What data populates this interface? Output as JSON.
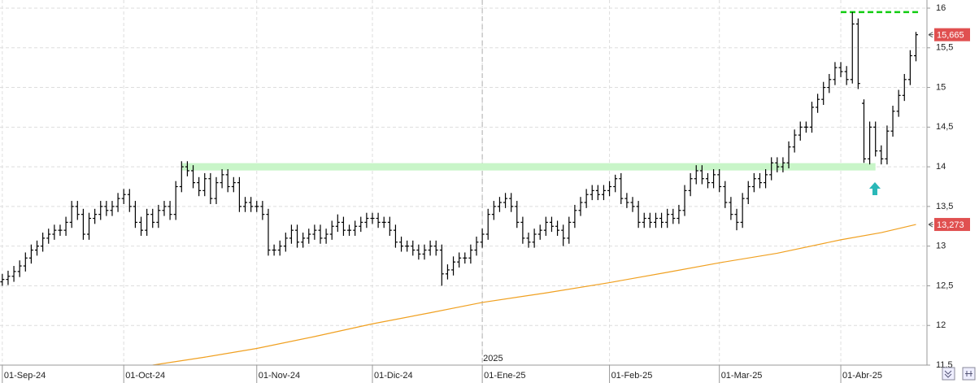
{
  "chart_data": {
    "type": "ohlc",
    "color": "#000000",
    "ylim": [
      11.5,
      16
    ],
    "yticks": [
      {
        "value": 11.5,
        "label": "11,5"
      },
      12,
      {
        "value": 12.5,
        "label": "12,5"
      },
      13,
      {
        "value": 13.5,
        "label": "13,5"
      },
      14,
      {
        "value": 14.5,
        "label": "14,5"
      },
      15,
      {
        "value": 15.5,
        "label": "15,5"
      },
      16
    ],
    "xlim": [
      -0.4,
      159.9
    ],
    "xticks": [
      {
        "value": 0,
        "label": "01-Sep-24"
      },
      {
        "value": 21,
        "label": "01-Oct-24"
      },
      {
        "value": 44,
        "label": "01-Nov-24"
      },
      {
        "value": 64,
        "label": "01-Dic-24"
      },
      {
        "value": 83,
        "label": "01-Ene-25"
      },
      {
        "value": 105,
        "label": "01-Feb-25"
      },
      {
        "value": 124,
        "label": "01-Mar-25"
      },
      {
        "value": 145,
        "label": "01-Abr-25"
      }
    ],
    "year_marker": {
      "value": 83,
      "label": "2025"
    },
    "grid": true,
    "ohlc": [
      [
        12.55,
        12.65,
        12.5,
        12.58
      ],
      [
        12.58,
        12.69,
        12.51,
        12.62
      ],
      [
        12.62,
        12.75,
        12.55,
        12.68
      ],
      [
        12.68,
        12.82,
        12.61,
        12.75
      ],
      [
        12.75,
        12.92,
        12.68,
        12.85
      ],
      [
        12.85,
        13.02,
        12.78,
        12.95
      ],
      [
        12.95,
        13.07,
        12.88,
        13.0
      ],
      [
        13.0,
        13.17,
        12.93,
        13.1
      ],
      [
        13.1,
        13.22,
        13.03,
        13.15
      ],
      [
        13.15,
        13.27,
        13.08,
        13.2
      ],
      [
        13.2,
        13.27,
        13.13,
        13.2
      ],
      [
        13.2,
        13.37,
        13.13,
        13.3
      ],
      [
        13.3,
        13.57,
        13.23,
        13.5
      ],
      [
        13.5,
        13.57,
        13.33,
        13.4
      ],
      [
        13.4,
        13.47,
        13.08,
        13.15
      ],
      [
        13.15,
        13.42,
        13.08,
        13.35
      ],
      [
        13.35,
        13.47,
        13.28,
        13.4
      ],
      [
        13.4,
        13.57,
        13.33,
        13.5
      ],
      [
        13.5,
        13.57,
        13.38,
        13.45
      ],
      [
        13.45,
        13.57,
        13.38,
        13.5
      ],
      [
        13.5,
        13.67,
        13.43,
        13.6
      ],
      [
        13.6,
        13.72,
        13.53,
        13.65
      ],
      [
        13.65,
        13.72,
        13.43,
        13.5
      ],
      [
        13.5,
        13.57,
        13.23,
        13.3
      ],
      [
        13.3,
        13.37,
        13.13,
        13.2
      ],
      [
        13.2,
        13.47,
        13.13,
        13.4
      ],
      [
        13.4,
        13.47,
        13.23,
        13.3
      ],
      [
        13.3,
        13.52,
        13.23,
        13.45
      ],
      [
        13.45,
        13.57,
        13.38,
        13.5
      ],
      [
        13.5,
        13.57,
        13.33,
        13.4
      ],
      [
        13.4,
        13.82,
        13.33,
        13.75
      ],
      [
        13.75,
        14.07,
        13.68,
        14.0
      ],
      [
        14.0,
        14.07,
        13.88,
        13.95
      ],
      [
        13.95,
        14.02,
        13.73,
        13.8
      ],
      [
        13.8,
        13.87,
        13.63,
        13.7
      ],
      [
        13.7,
        13.92,
        13.63,
        13.85
      ],
      [
        13.85,
        13.92,
        13.53,
        13.6
      ],
      [
        13.6,
        13.87,
        13.53,
        13.8
      ],
      [
        13.8,
        13.97,
        13.73,
        13.9
      ],
      [
        13.9,
        13.97,
        13.68,
        13.75
      ],
      [
        13.75,
        13.87,
        13.68,
        13.8
      ],
      [
        13.8,
        13.87,
        13.43,
        13.5
      ],
      [
        13.5,
        13.62,
        13.43,
        13.55
      ],
      [
        13.55,
        13.62,
        13.43,
        13.5
      ],
      [
        13.5,
        13.57,
        13.43,
        13.5
      ],
      [
        13.5,
        13.57,
        13.33,
        13.4
      ],
      [
        13.4,
        13.47,
        12.88,
        12.95
      ],
      [
        12.95,
        13.02,
        12.88,
        12.95
      ],
      [
        12.95,
        13.07,
        12.88,
        13.0
      ],
      [
        13.0,
        13.17,
        12.93,
        13.1
      ],
      [
        13.1,
        13.27,
        13.03,
        13.2
      ],
      [
        13.2,
        13.27,
        12.98,
        13.05
      ],
      [
        13.05,
        13.17,
        12.98,
        13.1
      ],
      [
        13.1,
        13.22,
        13.03,
        13.15
      ],
      [
        13.15,
        13.27,
        13.08,
        13.2
      ],
      [
        13.2,
        13.27,
        13.03,
        13.1
      ],
      [
        13.1,
        13.22,
        13.03,
        13.15
      ],
      [
        13.15,
        13.32,
        13.08,
        13.25
      ],
      [
        13.25,
        13.4,
        13.18,
        13.3
      ],
      [
        13.3,
        13.37,
        13.13,
        13.2
      ],
      [
        13.2,
        13.27,
        13.13,
        13.2
      ],
      [
        13.2,
        13.32,
        13.13,
        13.25
      ],
      [
        13.25,
        13.37,
        13.18,
        13.3
      ],
      [
        13.3,
        13.42,
        13.23,
        13.35
      ],
      [
        13.35,
        13.42,
        13.28,
        13.35
      ],
      [
        13.35,
        13.42,
        13.23,
        13.3
      ],
      [
        13.3,
        13.37,
        13.23,
        13.3
      ],
      [
        13.3,
        13.37,
        13.13,
        13.2
      ],
      [
        13.2,
        13.27,
        12.98,
        13.05
      ],
      [
        13.05,
        13.12,
        12.93,
        13.0
      ],
      [
        13.0,
        13.07,
        12.93,
        13.0
      ],
      [
        13.0,
        13.07,
        12.88,
        12.95
      ],
      [
        12.95,
        13.02,
        12.83,
        12.9
      ],
      [
        12.9,
        13.02,
        12.83,
        12.95
      ],
      [
        12.95,
        13.07,
        12.88,
        13.0
      ],
      [
        13.0,
        13.07,
        12.88,
        12.95
      ],
      [
        12.95,
        13.02,
        12.5,
        12.65
      ],
      [
        12.65,
        12.77,
        12.58,
        12.7
      ],
      [
        12.7,
        12.87,
        12.63,
        12.8
      ],
      [
        12.8,
        12.92,
        12.73,
        12.85
      ],
      [
        12.85,
        12.92,
        12.78,
        12.85
      ],
      [
        12.85,
        13.02,
        12.78,
        12.95
      ],
      [
        12.95,
        13.12,
        12.88,
        13.05
      ],
      [
        13.05,
        13.22,
        12.98,
        13.15
      ],
      [
        13.15,
        13.47,
        13.08,
        13.4
      ],
      [
        13.4,
        13.57,
        13.33,
        13.5
      ],
      [
        13.5,
        13.62,
        13.43,
        13.55
      ],
      [
        13.55,
        13.67,
        13.48,
        13.6
      ],
      [
        13.6,
        13.67,
        13.43,
        13.5
      ],
      [
        13.5,
        13.57,
        13.23,
        13.3
      ],
      [
        13.3,
        13.37,
        13.03,
        13.1
      ],
      [
        13.1,
        13.17,
        12.98,
        13.05
      ],
      [
        13.05,
        13.22,
        12.98,
        13.15
      ],
      [
        13.15,
        13.27,
        13.08,
        13.2
      ],
      [
        13.2,
        13.37,
        13.13,
        13.3
      ],
      [
        13.3,
        13.37,
        13.18,
        13.25
      ],
      [
        13.25,
        13.32,
        13.13,
        13.2
      ],
      [
        13.2,
        13.27,
        13.0,
        13.1
      ],
      [
        13.1,
        13.37,
        13.03,
        13.3
      ],
      [
        13.3,
        13.52,
        13.23,
        13.45
      ],
      [
        13.45,
        13.62,
        13.38,
        13.55
      ],
      [
        13.55,
        13.72,
        13.48,
        13.65
      ],
      [
        13.65,
        13.77,
        13.58,
        13.7
      ],
      [
        13.7,
        13.77,
        13.58,
        13.65
      ],
      [
        13.65,
        13.77,
        13.58,
        13.7
      ],
      [
        13.7,
        13.82,
        13.63,
        13.75
      ],
      [
        13.75,
        13.9,
        13.68,
        13.85
      ],
      [
        13.85,
        13.92,
        13.53,
        13.6
      ],
      [
        13.6,
        13.67,
        13.48,
        13.55
      ],
      [
        13.55,
        13.62,
        13.43,
        13.5
      ],
      [
        13.5,
        13.57,
        13.23,
        13.3
      ],
      [
        13.3,
        13.42,
        13.23,
        13.35
      ],
      [
        13.35,
        13.42,
        13.23,
        13.3
      ],
      [
        13.3,
        13.42,
        13.23,
        13.35
      ],
      [
        13.35,
        13.42,
        13.23,
        13.3
      ],
      [
        13.3,
        13.47,
        13.23,
        13.4
      ],
      [
        13.4,
        13.47,
        13.28,
        13.35
      ],
      [
        13.35,
        13.52,
        13.28,
        13.45
      ],
      [
        13.45,
        13.77,
        13.38,
        13.7
      ],
      [
        13.7,
        13.92,
        13.63,
        13.85
      ],
      [
        13.85,
        14.02,
        13.78,
        13.95
      ],
      [
        13.95,
        14.02,
        13.78,
        13.85
      ],
      [
        13.85,
        13.92,
        13.73,
        13.8
      ],
      [
        13.8,
        13.97,
        13.73,
        13.9
      ],
      [
        13.9,
        13.97,
        13.68,
        13.75
      ],
      [
        13.75,
        13.82,
        13.48,
        13.55
      ],
      [
        13.55,
        13.62,
        13.33,
        13.4
      ],
      [
        13.4,
        13.47,
        13.2,
        13.3
      ],
      [
        13.3,
        13.67,
        13.23,
        13.6
      ],
      [
        13.6,
        13.82,
        13.53,
        13.75
      ],
      [
        13.75,
        13.92,
        13.68,
        13.85
      ],
      [
        13.85,
        13.92,
        13.73,
        13.8
      ],
      [
        13.8,
        13.97,
        13.73,
        13.9
      ],
      [
        13.9,
        14.12,
        13.83,
        14.05
      ],
      [
        14.05,
        14.12,
        13.93,
        14.0
      ],
      [
        14.0,
        14.12,
        13.93,
        14.05
      ],
      [
        14.05,
        14.32,
        13.98,
        14.25
      ],
      [
        14.25,
        14.47,
        14.18,
        14.4
      ],
      [
        14.4,
        14.57,
        14.33,
        14.5
      ],
      [
        14.5,
        14.57,
        14.43,
        14.5
      ],
      [
        14.5,
        14.82,
        14.43,
        14.75
      ],
      [
        14.75,
        14.92,
        14.68,
        14.85
      ],
      [
        14.85,
        15.07,
        14.78,
        15.0
      ],
      [
        15.0,
        15.17,
        14.93,
        15.1
      ],
      [
        15.1,
        15.32,
        15.03,
        15.25
      ],
      [
        15.25,
        15.32,
        15.13,
        15.2
      ],
      [
        15.2,
        15.27,
        15.03,
        15.1
      ],
      [
        15.1,
        15.95,
        15.05,
        15.8
      ],
      [
        15.8,
        15.87,
        14.98,
        15.05
      ],
      [
        14.8,
        14.85,
        14.05,
        14.1
      ],
      [
        14.1,
        14.57,
        14.03,
        14.5
      ],
      [
        14.5,
        14.57,
        14.13,
        14.2
      ],
      [
        14.2,
        14.27,
        14.03,
        14.1
      ],
      [
        14.1,
        14.52,
        14.03,
        14.45
      ],
      [
        14.45,
        14.77,
        14.38,
        14.7
      ],
      [
        14.7,
        14.97,
        14.63,
        14.9
      ],
      [
        14.9,
        15.17,
        14.83,
        15.1
      ],
      [
        15.1,
        15.47,
        15.03,
        15.4
      ],
      [
        15.4,
        15.7,
        15.33,
        15.665
      ]
    ],
    "moving_average": {
      "color": "#f0a020",
      "x": [
        26,
        35,
        44,
        54,
        64,
        74,
        83,
        94,
        105,
        115,
        124,
        134,
        145,
        152,
        158
      ],
      "values": [
        11.5,
        11.6,
        11.71,
        11.86,
        12.02,
        12.16,
        12.29,
        12.41,
        12.54,
        12.67,
        12.79,
        12.91,
        13.08,
        13.17,
        13.273
      ]
    },
    "levels": [
      {
        "value": 15.95,
        "from": 145,
        "to": 158.5,
        "color": "#11cc11",
        "style": "dashed"
      },
      {
        "value": 14.0,
        "from": 31,
        "to": 151,
        "color": "#c8f5c8",
        "style": "band"
      }
    ],
    "price_labels": [
      {
        "value": 15.665,
        "label": "15,665"
      },
      {
        "value": 13.273,
        "label": "13,273"
      }
    ],
    "label_color": "#e05050"
  }
}
